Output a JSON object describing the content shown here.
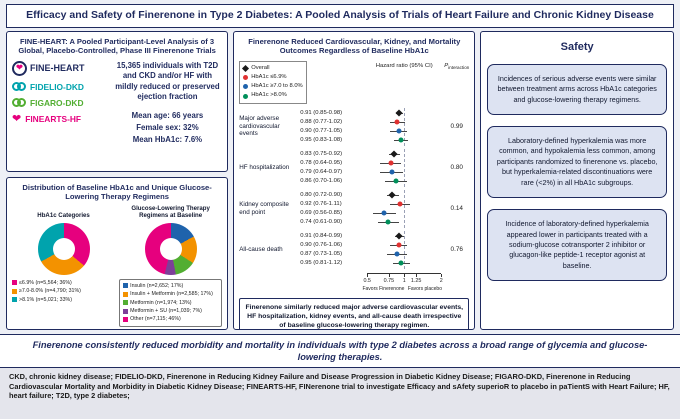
{
  "page_title": "Efficacy and Safety of Finerenone in Type 2 Diabetes: A Pooled Analysis of Trials of Heart Failure and Chronic Kidney Disease",
  "icons": {
    "heart": "❤"
  },
  "fine_heart": {
    "header": "FINE-HEART: A Pooled Participant-Level Analysis of 3 Global, Placebo-Controlled, Phase III Finerenone Trials",
    "logo_title": "FINE-HEART",
    "trials": [
      {
        "name": "FIDELIO-DKD",
        "color": "#00a3ad"
      },
      {
        "name": "FIGARO-DKD",
        "color": "#52ae32"
      },
      {
        "name": "FINEARTS-HF",
        "color": "#e6007e"
      }
    ],
    "population": "15,365 individuals with T2D and CKD and/or HF with mildly reduced or preserved ejection fraction",
    "stats": [
      "Mean age: 66 years",
      "Female sex: 32%",
      "Mean HbA1c: 7.6%"
    ]
  },
  "distribution": {
    "header": "Distribution of Baseline HbA1c and Unique Glucose-Lowering Therapy Regimens",
    "left_subtitle": "HbA1c Categories",
    "right_subtitle": "Glucose-Lowering Therapy Regimens at Baseline"
  },
  "forest_panel": {
    "header": "Finerenone Reduced Cardiovascular, Kidney, and Mortality Outcomes Regardless of Baseline HbA1c",
    "hr_header": "Hazard ratio (95% CI)",
    "p_header_main": "P",
    "p_header_sub": "interaction",
    "note": "Finerenone similarly reduced major adverse cardiovascular events, HF hospitalization, kidney events, and all-cause death irrespective of baseline glucose-lowering therapy regimen."
  },
  "safety": {
    "title": "Safety",
    "boxes": [
      "Incidences of serious adverse events were similar between treatment arms across HbA1c categories and glucose-lowering therapy regimens.",
      "Laboratory-defined hyperkalemia was more common, and hypokalemia less common, among participants randomized to finerenone vs. placebo, but hyperkalemia-related discontinuations were rare (<2%) in all HbA1c subgroups.",
      "Incidence of laboratory-defined hyperkalemia appeared lower in participants treated with a sodium-glucose cotransporter 2 inhibitor or glucagon-like peptide-1 receptor agonist at baseline."
    ]
  },
  "conclusion": "Finerenone consistently reduced morbidity and mortality in individuals with type 2 diabetes across a broad range of glycemia and glucose-lowering therapies.",
  "footnote": "CKD, chronic kidney disease;  FIDELIO-DKD, Finerenone in Reducing Kidney Failure and Disease Progression in Diabetic Kidney Disease; FIGARO-DKD, Finerenone in Reducing Cardiovascular Mortality and Morbidity in Diabetic Kidney Disease; FINEARTS-HF, FINerenone trial to investigate Efficacy and sAfety superioR to placebo in paTientS with Heart Failure; HF, heart failure; T2D, type 2 diabetes;",
  "chart_data": [
    {
      "type": "pie",
      "title": "HbA1c Categories",
      "legend_position": "bottom",
      "slices": [
        {
          "label": "≤6.9% (n=5,564; 36%)",
          "value": 36,
          "color": "#e6007e"
        },
        {
          "label": "≥7.0-8.0% (n=4,790; 31%)",
          "value": 31,
          "color": "#f39200"
        },
        {
          "label": ">8.1% (n=5,021; 33%)",
          "value": 33,
          "color": "#00a3ad"
        }
      ]
    },
    {
      "type": "pie",
      "title": "Glucose-Lowering Therapy Regimens at Baseline",
      "legend_position": "bottom",
      "slices": [
        {
          "label": "Insulin (n=2,652; 17%)",
          "value": 17,
          "color": "#1f63ac"
        },
        {
          "label": "Insulin + Metformin (n=2,585; 17%)",
          "value": 17,
          "color": "#f39200"
        },
        {
          "label": "Metformin (n=1,974; 13%)",
          "value": 13,
          "color": "#52ae32"
        },
        {
          "label": "Metformin + SU (n=1,039; 7%)",
          "value": 7,
          "color": "#7d3f98"
        },
        {
          "label": "Other (n=7,115; 46%)",
          "value": 46,
          "color": "#e6007e"
        }
      ]
    },
    {
      "type": "forest",
      "title": "Finerenone Reduced Cardiovascular, Kidney, and Mortality Outcomes Regardless of Baseline HbA1c",
      "x_scale": "log",
      "x_range": [
        0.5,
        2
      ],
      "x_ticks": [
        0.5,
        0.75,
        1,
        1.25,
        2
      ],
      "favors_left": "Favors Finerenone",
      "favors_right": "Favors placebo",
      "legend": [
        {
          "label": "Overall",
          "color": "#1a1a1a",
          "marker": "diamond"
        },
        {
          "label": "HbA1c ≤6.9%",
          "color": "#e03131",
          "marker": "circle"
        },
        {
          "label": "HbA1c ≥7.0 to 8.0%",
          "color": "#1f63ac",
          "marker": "circle"
        },
        {
          "label": "HbA1c >8.0%",
          "color": "#008f5a",
          "marker": "circle"
        }
      ],
      "outcomes": [
        {
          "name": "Major adverse cardiovascular events",
          "p_interaction": "0.99",
          "estimates": [
            {
              "hr": 0.91,
              "lo": 0.85,
              "hi": 0.98,
              "label": "0.91 (0.85-0.98)"
            },
            {
              "hr": 0.88,
              "lo": 0.77,
              "hi": 1.02,
              "label": "0.88 (0.77-1.02)"
            },
            {
              "hr": 0.9,
              "lo": 0.77,
              "hi": 1.05,
              "label": "0.90 (0.77-1.05)"
            },
            {
              "hr": 0.95,
              "lo": 0.83,
              "hi": 1.08,
              "label": "0.95 (0.83-1.08)"
            }
          ]
        },
        {
          "name": "HF hospitalization",
          "p_interaction": "0.80",
          "estimates": [
            {
              "hr": 0.83,
              "lo": 0.75,
              "hi": 0.92,
              "label": "0.83 (0.75-0.92)"
            },
            {
              "hr": 0.78,
              "lo": 0.64,
              "hi": 0.95,
              "label": "0.78 (0.64-0.95)"
            },
            {
              "hr": 0.79,
              "lo": 0.64,
              "hi": 0.97,
              "label": "0.79 (0.64-0.97)"
            },
            {
              "hr": 0.86,
              "lo": 0.7,
              "hi": 1.06,
              "label": "0.86 (0.70-1.06)"
            }
          ]
        },
        {
          "name": "Kidney composite end point",
          "p_interaction": "0.14",
          "estimates": [
            {
              "hr": 0.8,
              "lo": 0.72,
              "hi": 0.9,
              "label": "0.80 (0.72-0.90)"
            },
            {
              "hr": 0.92,
              "lo": 0.76,
              "hi": 1.11,
              "label": "0.92 (0.76-1.11)"
            },
            {
              "hr": 0.69,
              "lo": 0.56,
              "hi": 0.85,
              "label": "0.69 (0.56-0.85)"
            },
            {
              "hr": 0.74,
              "lo": 0.61,
              "hi": 0.9,
              "label": "0.74 (0.61-0.90)"
            }
          ]
        },
        {
          "name": "All-cause death",
          "p_interaction": "0.76",
          "estimates": [
            {
              "hr": 0.91,
              "lo": 0.84,
              "hi": 0.99,
              "label": "0.91 (0.84-0.99)"
            },
            {
              "hr": 0.9,
              "lo": 0.76,
              "hi": 1.06,
              "label": "0.90 (0.76-1.06)"
            },
            {
              "hr": 0.87,
              "lo": 0.73,
              "hi": 1.05,
              "label": "0.87 (0.73-1.05)"
            },
            {
              "hr": 0.95,
              "lo": 0.81,
              "hi": 1.12,
              "label": "0.95 (0.81-1.12)"
            }
          ]
        }
      ]
    }
  ]
}
